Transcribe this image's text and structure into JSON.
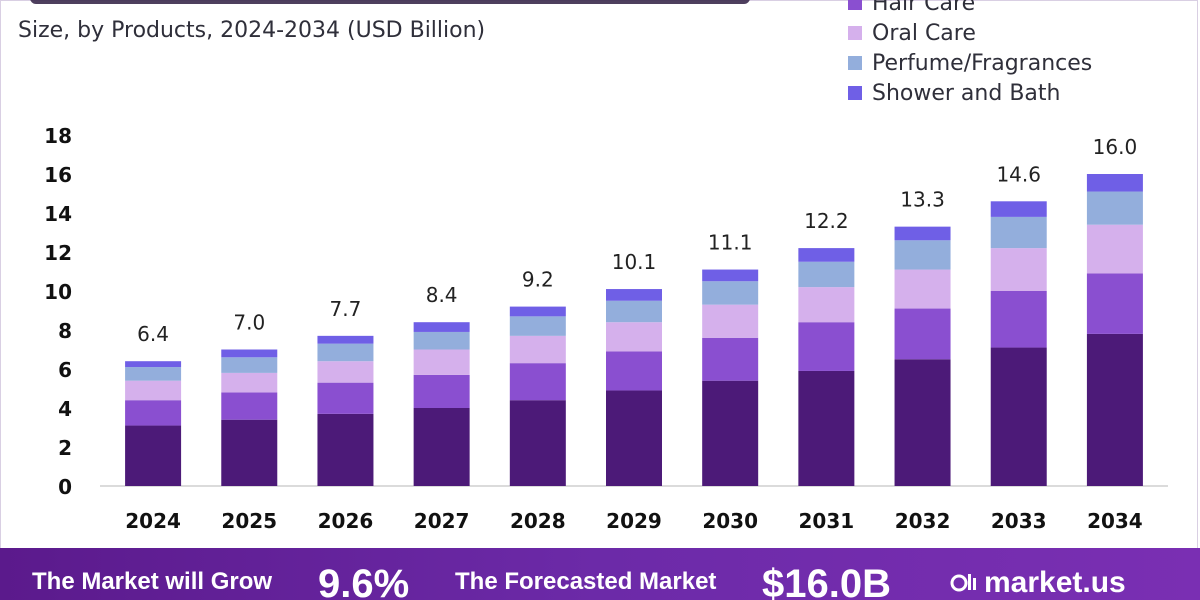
{
  "header": {
    "subtitle": "Size, by Products, 2024-2034 (USD Billion)"
  },
  "legend": {
    "items": [
      {
        "label": "Hair Care",
        "color": "#8a4fd0"
      },
      {
        "label": "Oral Care",
        "color": "#d5b0ec"
      },
      {
        "label": "Perfume/Fragrances",
        "color": "#93aedc"
      },
      {
        "label": "Shower and Bath",
        "color": "#6f5fe6"
      }
    ]
  },
  "footer": {
    "grow_label": "The Market will Grow",
    "cagr": "9.6%",
    "forecast_label": "The Forecasted Market",
    "forecast_value": "$16.0B",
    "brand": "market.us"
  },
  "chart_data": {
    "type": "bar",
    "stacked": true,
    "categories": [
      "2024",
      "2025",
      "2026",
      "2027",
      "2028",
      "2029",
      "2030",
      "2031",
      "2032",
      "2033",
      "2034"
    ],
    "totals": [
      6.4,
      7.0,
      7.7,
      8.4,
      9.2,
      10.1,
      11.1,
      12.2,
      13.3,
      14.6,
      16.0
    ],
    "total_labels": [
      "6.4",
      "7.0",
      "7.7",
      "8.4",
      "9.2",
      "10.1",
      "11.1",
      "12.2",
      "13.3",
      "14.6",
      "16.0"
    ],
    "series": [
      {
        "color": "#4c1a78",
        "values": [
          3.1,
          3.4,
          3.7,
          4.0,
          4.4,
          4.9,
          5.4,
          5.9,
          6.5,
          7.1,
          7.8
        ]
      },
      {
        "name": "Hair Care",
        "color": "#8a4fd0",
        "values": [
          1.3,
          1.4,
          1.6,
          1.7,
          1.9,
          2.0,
          2.2,
          2.5,
          2.6,
          2.9,
          3.1
        ]
      },
      {
        "name": "Oral Care",
        "color": "#d5b0ec",
        "values": [
          1.0,
          1.0,
          1.1,
          1.3,
          1.4,
          1.5,
          1.7,
          1.8,
          2.0,
          2.2,
          2.5
        ]
      },
      {
        "name": "Perfume/Fragrances",
        "color": "#93aedc",
        "values": [
          0.7,
          0.8,
          0.9,
          0.9,
          1.0,
          1.1,
          1.2,
          1.3,
          1.5,
          1.6,
          1.7
        ]
      },
      {
        "name": "Shower and Bath",
        "color": "#6f5fe6",
        "values": [
          0.3,
          0.4,
          0.4,
          0.5,
          0.5,
          0.6,
          0.6,
          0.7,
          0.7,
          0.8,
          0.9
        ]
      }
    ],
    "yticks": [
      0,
      2,
      4,
      6,
      8,
      10,
      12,
      14,
      16,
      18
    ],
    "ylim": [
      0,
      18
    ],
    "grid": false,
    "legend_position": "top-right"
  }
}
